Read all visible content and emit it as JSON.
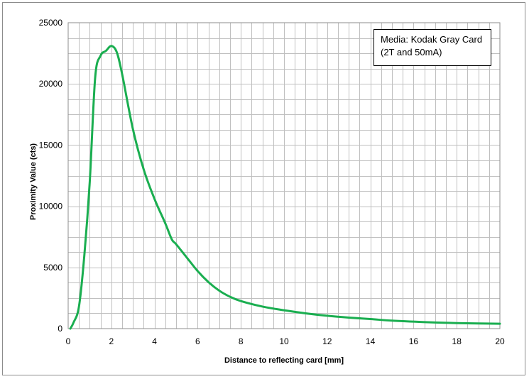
{
  "chart_data": {
    "type": "line",
    "title": "",
    "xlabel": "Distance  to reflecting card [mm]",
    "ylabel": "Proximity Value (cts)",
    "xlim": [
      0,
      20
    ],
    "ylim": [
      0,
      25000
    ],
    "grid": true,
    "line_color": "#1aae50",
    "grid_color": "#bfbfbf",
    "x_ticks": [
      "0",
      "2",
      "4",
      "6",
      "8",
      "10",
      "12",
      "14",
      "16",
      "18",
      "20"
    ],
    "y_ticks": [
      "0",
      "5000",
      "10000",
      "15000",
      "20000",
      "25000"
    ],
    "annotation": {
      "line1": "Media: Kodak Gray Card",
      "line2": "(2T and 50mA)"
    },
    "series": [
      {
        "x": [
          0.1,
          0.25,
          0.5,
          0.75,
          1.0,
          1.25,
          1.5,
          1.75,
          2.0,
          2.25,
          2.5,
          3.0,
          3.5,
          4.0,
          4.5,
          4.8,
          5.0,
          5.5,
          6.0,
          6.5,
          7.0,
          7.5,
          8.0,
          9.0,
          10.0,
          11.0,
          12.0,
          13.0,
          14.0,
          15.0,
          16.0,
          17.0,
          18.0,
          19.0,
          20.0
        ],
        "y": [
          0,
          500,
          1800,
          6000,
          12000,
          20500,
          22300,
          22700,
          23100,
          22600,
          20800,
          16300,
          13000,
          10600,
          8600,
          7300,
          6900,
          5800,
          4700,
          3800,
          3100,
          2600,
          2250,
          1800,
          1500,
          1250,
          1050,
          900,
          780,
          650,
          570,
          500,
          450,
          420,
          400
        ]
      }
    ]
  }
}
